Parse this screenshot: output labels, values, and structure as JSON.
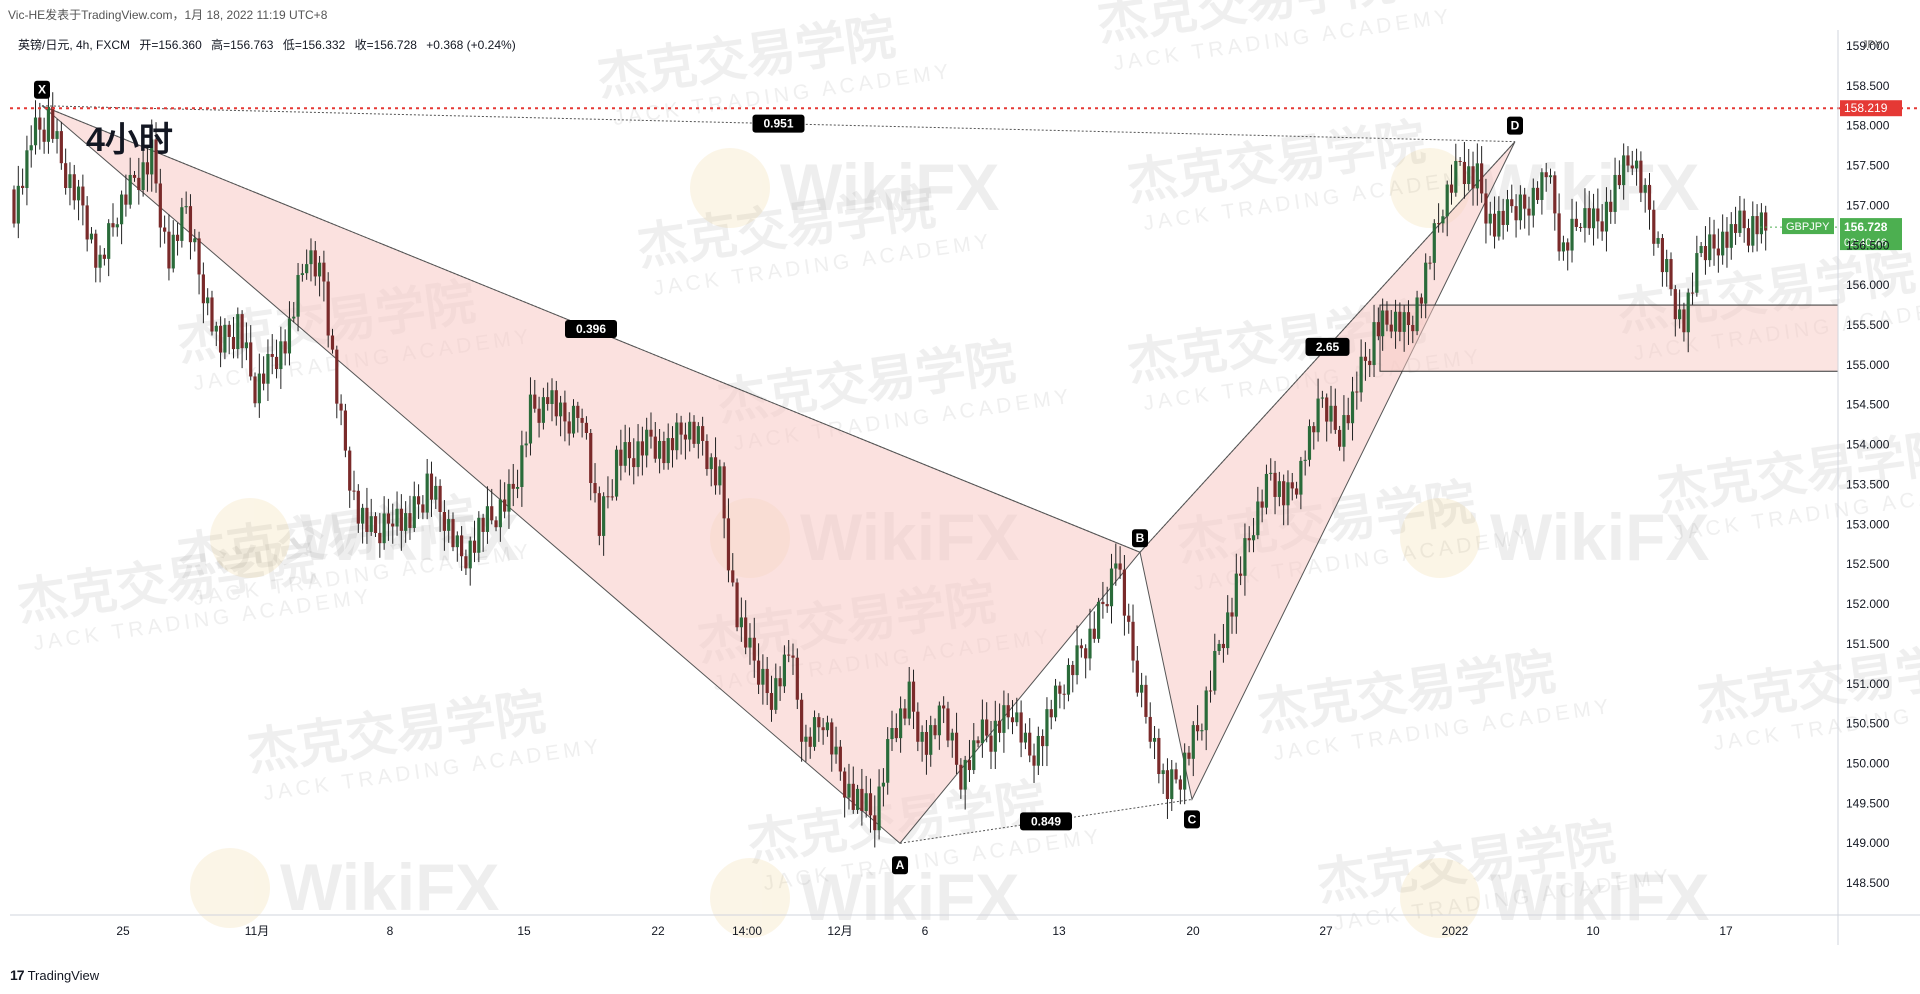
{
  "header": {
    "publish_line": "Vic-HE发表于TradingView.com，1月 18, 2022 11:19 UTC+8",
    "symbol_line": "英镑/日元, 4h, FXCM",
    "open_label": "开=156.360",
    "high_label": "高=156.763",
    "low_label": "低=156.332",
    "close_label": "收=156.728",
    "change_label": "+0.368 (+0.24%)",
    "timeframe_overlay": "4小时"
  },
  "footer": {
    "brand": "TradingView"
  },
  "watermarks": {
    "cn": "杰克交易学院",
    "en": "JACK TRADING ACADEMY",
    "wikifx": "WikiFX"
  },
  "colors": {
    "up": "#26a69a",
    "down": "#ef5350",
    "candle": "#1f2a1f",
    "pattern_fill": "#f8c9c4",
    "resistance": "#e53935",
    "price_tag": "#4caf50",
    "label_bg": "#000000"
  },
  "chart_data": {
    "type": "candlestick",
    "symbol": "GBPJPY",
    "currency": "JPY",
    "ylim": [
      148.1,
      159.2
    ],
    "y_ticks": [
      148.5,
      149.0,
      149.5,
      150.0,
      150.5,
      151.0,
      151.5,
      152.0,
      152.5,
      153.0,
      153.5,
      154.0,
      154.5,
      155.0,
      155.5,
      156.0,
      156.5,
      157.0,
      157.5,
      158.0,
      158.5,
      159.0
    ],
    "x_ticks": [
      "25",
      "11月",
      "8",
      "15",
      "22",
      "14:00",
      "12月",
      "6",
      "13",
      "20",
      "27",
      "2022",
      "10",
      "17"
    ],
    "last_price": 156.728,
    "countdown": "02:40:46",
    "resistance_level": 158.219,
    "harmonic_points": [
      {
        "label": "X",
        "value": 158.25
      },
      {
        "label": "A",
        "value": 149.0
      },
      {
        "label": "B",
        "value": 152.65
      },
      {
        "label": "C",
        "value": 149.55
      },
      {
        "label": "D",
        "value": 157.8
      }
    ],
    "ratios": [
      {
        "legs": "XA-B",
        "text": "0.396"
      },
      {
        "legs": "AB-C",
        "text": "0.849"
      },
      {
        "legs": "BC-D",
        "text": "2.65"
      },
      {
        "legs": "XA-D",
        "text": "0.951"
      }
    ],
    "zone": {
      "high": 155.75,
      "low": 154.92
    },
    "series": [
      {
        "close_path": [
          157.0,
          157.8,
          158.1,
          157.4,
          157.0,
          156.2,
          156.9,
          157.3,
          157.6,
          156.3,
          156.9,
          156.0,
          155.2,
          155.5,
          154.7,
          155.1,
          155.4,
          156.4,
          156.0,
          154.2,
          153.1,
          152.8,
          153.2,
          153.0,
          153.5,
          153.1,
          152.6,
          152.9,
          153.1,
          153.4,
          154.4,
          154.6,
          154.2,
          154.5,
          152.9,
          153.8,
          153.9,
          154.1,
          153.9,
          154.2,
          154.0,
          153.5,
          151.8,
          151.2,
          150.9,
          151.4,
          150.2,
          150.6,
          149.9,
          149.5,
          149.3,
          150.4,
          150.8,
          150.2,
          150.6,
          149.9,
          150.3,
          150.4,
          150.7,
          150.1,
          150.5,
          151.0,
          151.4,
          151.8,
          152.6,
          151.2,
          150.5,
          149.6,
          150.0,
          150.6,
          151.5,
          152.2,
          153.0,
          153.6,
          153.3,
          153.9,
          154.5,
          154.2,
          154.7,
          155.4,
          155.6,
          155.5,
          156.1,
          157.0,
          157.5,
          157.3,
          156.7,
          156.9,
          157.1,
          157.4,
          156.4,
          156.9,
          156.8,
          157.2,
          157.6,
          156.9,
          156.1,
          155.5,
          156.4,
          156.6,
          156.7,
          156.73
        ]
      }
    ]
  }
}
